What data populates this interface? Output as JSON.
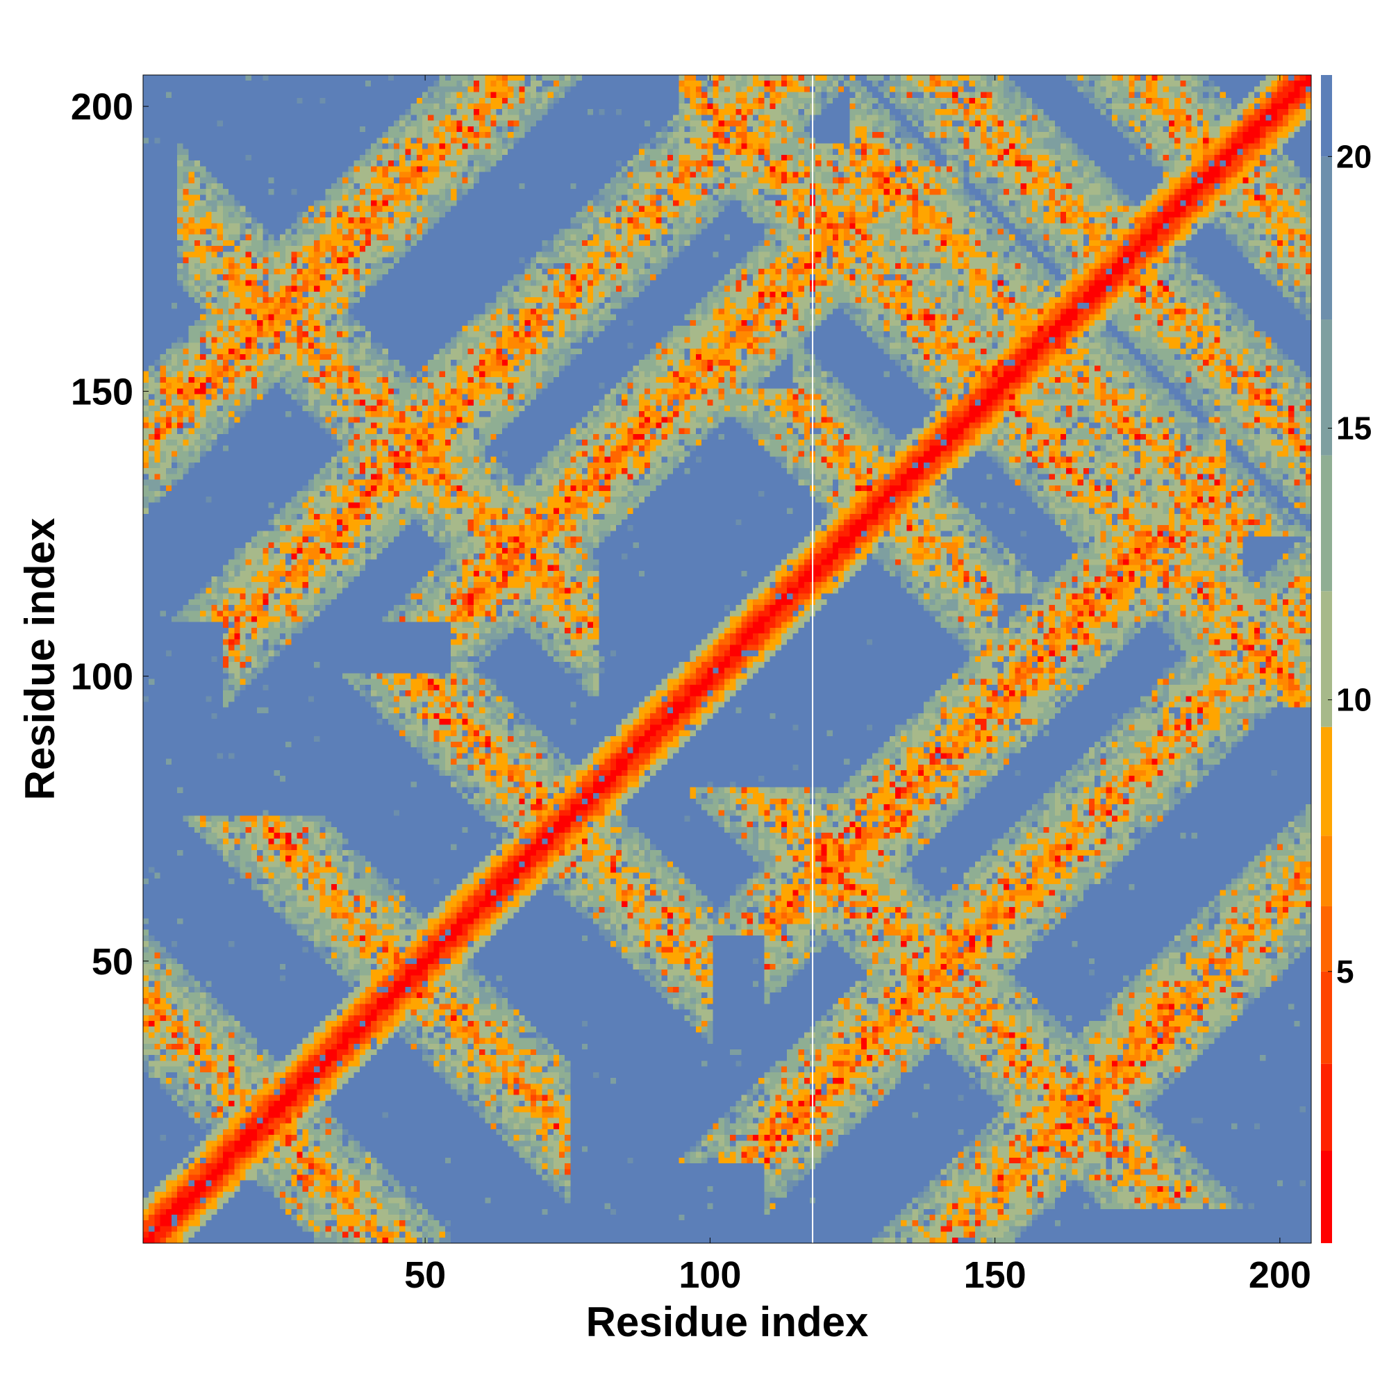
{
  "chart_data": {
    "type": "heatmap",
    "title": "",
    "xlabel": "Residue index",
    "ylabel": "Residue index",
    "xlim": [
      1,
      205
    ],
    "ylim": [
      1,
      205
    ],
    "x_ticks": [
      50,
      100,
      150,
      200
    ],
    "y_ticks": [
      50,
      100,
      150,
      200
    ],
    "colorbar": {
      "range": [
        0,
        21.5
      ],
      "ticks": [
        5,
        10,
        15,
        20
      ],
      "colors": [
        "#ff0000",
        "#ff2200",
        "#ff4400",
        "#ff6600",
        "#ff8800",
        "#ffa500",
        "#a7b98a",
        "#8fae93",
        "#7e9fa0",
        "#6d8fac",
        "#5c7fb8",
        "#0000ff"
      ],
      "boundaries": [
        0,
        1.7,
        3.3,
        5,
        6.2,
        7.5,
        9.5,
        12,
        14.5,
        17,
        20,
        21.5
      ]
    },
    "value_description": "pairwise distance map; values above ~20 shown as saturated blue",
    "structure": {
      "diagonal": "distance ~0 along i=j (red), rising to ~12 within ±6 residues",
      "contact_bands_antiparallel": [
        {
          "center_sum": 44,
          "i_range": [
            1,
            40
          ]
        },
        {
          "center_sum": 95,
          "i_range": [
            35,
            75
          ]
        },
        {
          "center_sum": 148,
          "i_range": [
            60,
            100
          ]
        },
        {
          "center_sum": 188,
          "i_range": [
            7,
            80
          ]
        },
        {
          "center_sum": 262,
          "i_range": [
            115,
            150
          ]
        },
        {
          "center_sum": 300,
          "i_range": [
            95,
            180
          ]
        },
        {
          "center_sum": 318,
          "i_range": [
            125,
            193
          ]
        },
        {
          "center_sum": 345,
          "i_range": [
            150,
            205
          ]
        },
        {
          "center_sum": 380,
          "i_range": [
            185,
            205
          ]
        }
      ],
      "contact_bands_parallel": [
        {
          "offset_j_minus_i": 92,
          "i_range": [
            15,
            70
          ]
        },
        {
          "offset_j_minus_i": 55,
          "i_range": [
            55,
            125
          ]
        },
        {
          "offset_j_minus_i": 140,
          "i_range": [
            1,
            50
          ]
        },
        {
          "offset_j_minus_i": -92,
          "i_range": [
            110,
            205
          ]
        },
        {
          "offset_j_minus_i": -55,
          "i_range": [
            110,
            190
          ]
        },
        {
          "offset_j_minus_i": -140,
          "i_range": [
            150,
            205
          ]
        }
      ],
      "vertical_white_line_at_x": 118
    }
  }
}
